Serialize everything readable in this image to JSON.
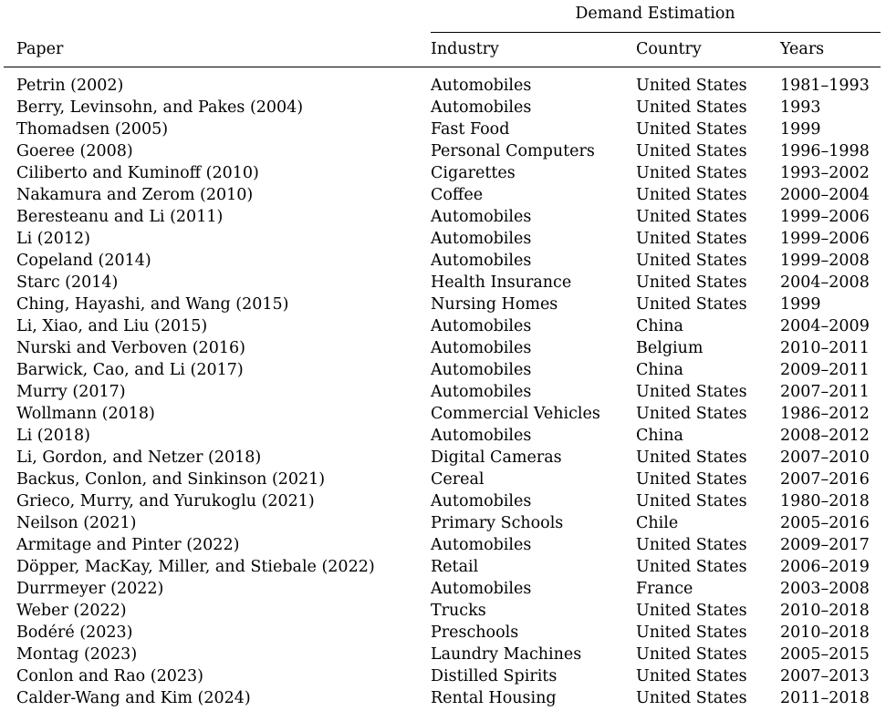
{
  "table": {
    "group_header": "Demand Estimation",
    "columns": {
      "paper": "Paper",
      "industry": "Industry",
      "country": "Country",
      "years": "Years"
    },
    "rows": [
      {
        "paper": "Petrin (2002)",
        "industry": "Automobiles",
        "country": "United States",
        "years": "1981–1993"
      },
      {
        "paper": "Berry, Levinsohn, and Pakes (2004)",
        "industry": "Automobiles",
        "country": "United States",
        "years": "1993"
      },
      {
        "paper": "Thomadsen (2005)",
        "industry": "Fast Food",
        "country": "United States",
        "years": "1999"
      },
      {
        "paper": "Goeree (2008)",
        "industry": "Personal Computers",
        "country": "United States",
        "years": "1996–1998"
      },
      {
        "paper": "Ciliberto and Kuminoff (2010)",
        "industry": "Cigarettes",
        "country": "United States",
        "years": "1993–2002"
      },
      {
        "paper": "Nakamura and Zerom (2010)",
        "industry": "Coffee",
        "country": "United States",
        "years": "2000–2004"
      },
      {
        "paper": "Beresteanu and Li (2011)",
        "industry": "Automobiles",
        "country": "United States",
        "years": "1999–2006"
      },
      {
        "paper": "Li (2012)",
        "industry": "Automobiles",
        "country": "United States",
        "years": "1999–2006"
      },
      {
        "paper": "Copeland (2014)",
        "industry": "Automobiles",
        "country": "United States",
        "years": "1999–2008"
      },
      {
        "paper": "Starc (2014)",
        "industry": "Health Insurance",
        "country": "United States",
        "years": "2004–2008"
      },
      {
        "paper": "Ching, Hayashi, and Wang (2015)",
        "industry": "Nursing Homes",
        "country": "United States",
        "years": "1999"
      },
      {
        "paper": "Li, Xiao, and Liu (2015)",
        "industry": "Automobiles",
        "country": "China",
        "years": "2004–2009"
      },
      {
        "paper": "Nurski and Verboven (2016)",
        "industry": "Automobiles",
        "country": "Belgium",
        "years": "2010–2011"
      },
      {
        "paper": "Barwick, Cao, and Li (2017)",
        "industry": "Automobiles",
        "country": "China",
        "years": "2009–2011"
      },
      {
        "paper": "Murry (2017)",
        "industry": "Automobiles",
        "country": "United States",
        "years": "2007–2011"
      },
      {
        "paper": "Wollmann (2018)",
        "industry": "Commercial Vehicles",
        "country": "United States",
        "years": "1986–2012"
      },
      {
        "paper": "Li (2018)",
        "industry": "Automobiles",
        "country": "China",
        "years": "2008–2012"
      },
      {
        "paper": "Li, Gordon, and Netzer (2018)",
        "industry": "Digital Cameras",
        "country": "United States",
        "years": "2007–2010"
      },
      {
        "paper": "Backus, Conlon, and Sinkinson (2021)",
        "industry": "Cereal",
        "country": "United States",
        "years": "2007–2016"
      },
      {
        "paper": "Grieco, Murry, and Yurukoglu (2021)",
        "industry": "Automobiles",
        "country": "United States",
        "years": "1980–2018"
      },
      {
        "paper": "Neilson (2021)",
        "industry": "Primary Schools",
        "country": "Chile",
        "years": "2005–2016"
      },
      {
        "paper": "Armitage and Pinter (2022)",
        "industry": "Automobiles",
        "country": "United States",
        "years": "2009–2017"
      },
      {
        "paper": "Döpper, MacKay, Miller, and Stiebale (2022)",
        "industry": "Retail",
        "country": "United States",
        "years": "2006–2019"
      },
      {
        "paper": "Durrmeyer (2022)",
        "industry": "Automobiles",
        "country": "France",
        "years": "2003–2008"
      },
      {
        "paper": "Weber (2022)",
        "industry": "Trucks",
        "country": "United States",
        "years": "2010–2018"
      },
      {
        "paper": "Bodéré (2023)",
        "industry": "Preschools",
        "country": "United States",
        "years": "2010–2018"
      },
      {
        "paper": "Montag (2023)",
        "industry": "Laundry Machines",
        "country": "United States",
        "years": "2005–2015"
      },
      {
        "paper": "Conlon and Rao (2023)",
        "industry": "Distilled Spirits",
        "country": "United States",
        "years": "2007–2013"
      },
      {
        "paper": "Calder-Wang and Kim (2024)",
        "industry": "Rental Housing",
        "country": "United States",
        "years": "2011–2018"
      }
    ]
  }
}
